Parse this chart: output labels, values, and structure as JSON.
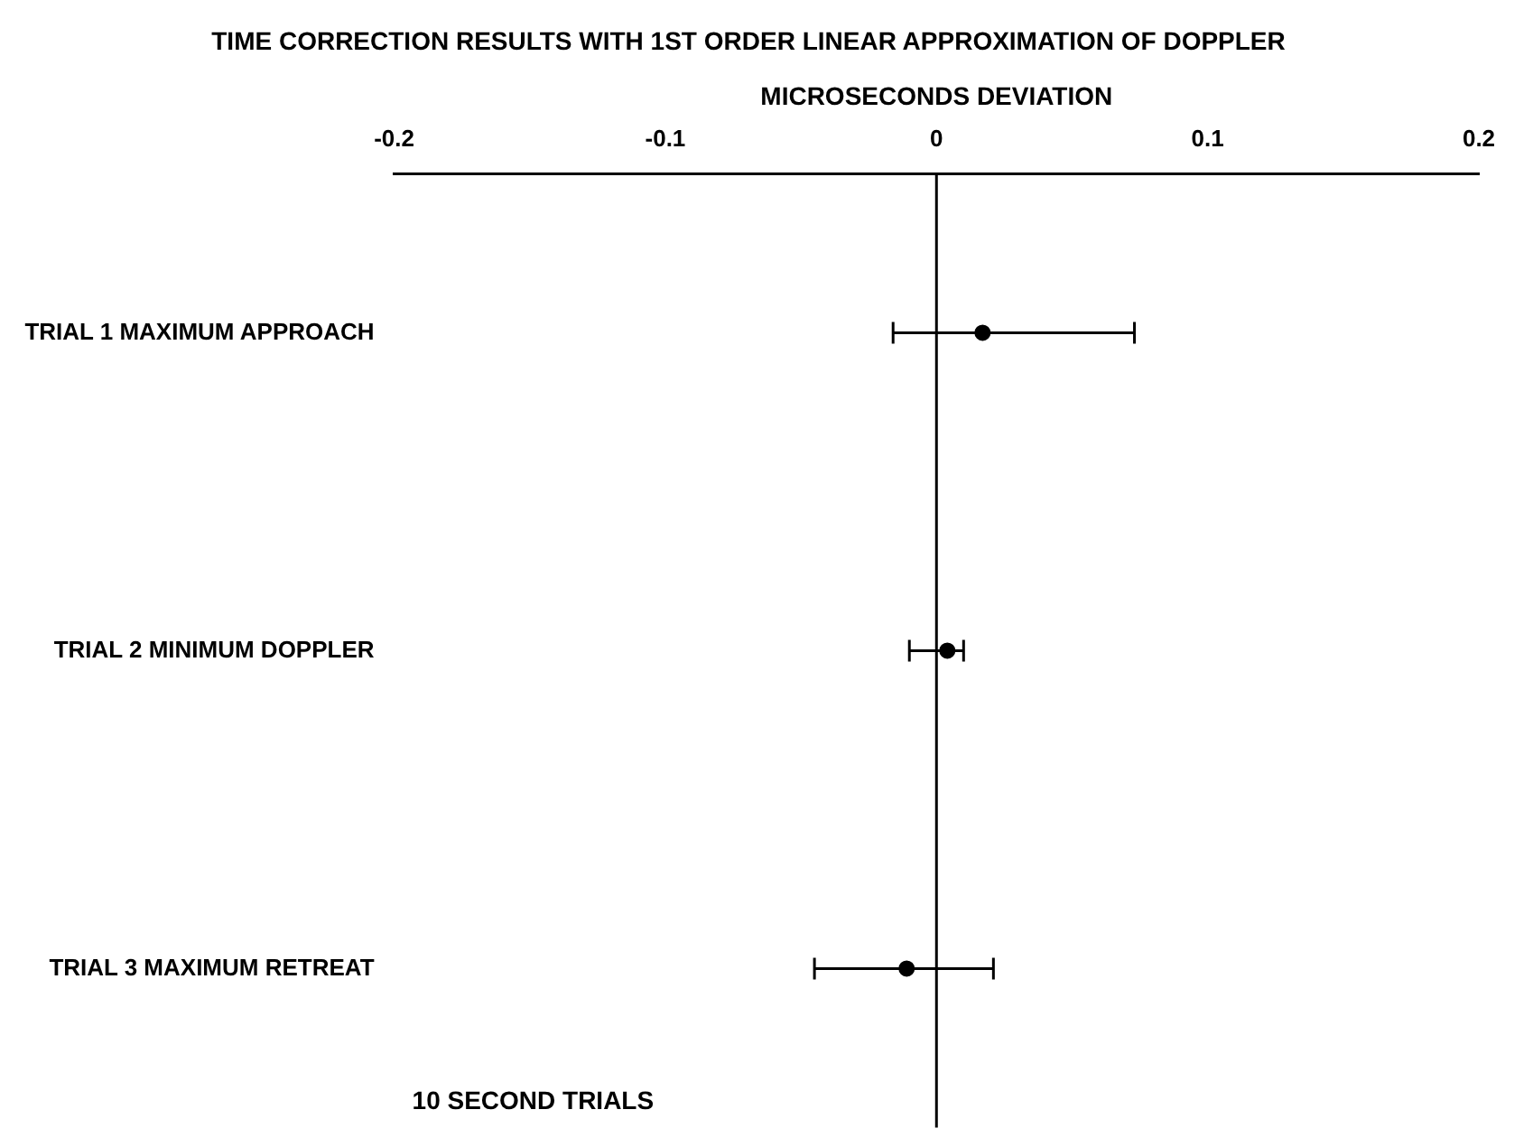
{
  "chart_data": {
    "type": "scatter",
    "title": "TIME CORRECTION RESULTS WITH 1ST ORDER LINEAR APPROXIMATION OF DOPPLER",
    "xlabel": "MICROSECONDS DEVIATION",
    "categories": [
      "TRIAL 1 MAXIMUM APPROACH",
      "TRIAL 2 MINIMUM DOPPLER",
      "TRIAL 3 MAXIMUM RETREAT"
    ],
    "orientation": "horizontal",
    "values": [
      0.017,
      0.004,
      -0.011
    ],
    "errors": [
      [
        -0.016,
        0.073
      ],
      [
        -0.01,
        0.01
      ],
      [
        -0.045,
        0.021
      ]
    ],
    "color": "#000000",
    "xlim": [
      -0.2,
      0.2
    ],
    "xticks": [
      -0.2,
      -0.1,
      0,
      0.1,
      0.2
    ],
    "ref_lines": [
      {
        "axis": "x",
        "value": 0,
        "color": "#000000"
      }
    ],
    "annotations": [
      "10 SECOND TRIALS"
    ],
    "grid": false,
    "legend": false,
    "marker": "circle"
  }
}
